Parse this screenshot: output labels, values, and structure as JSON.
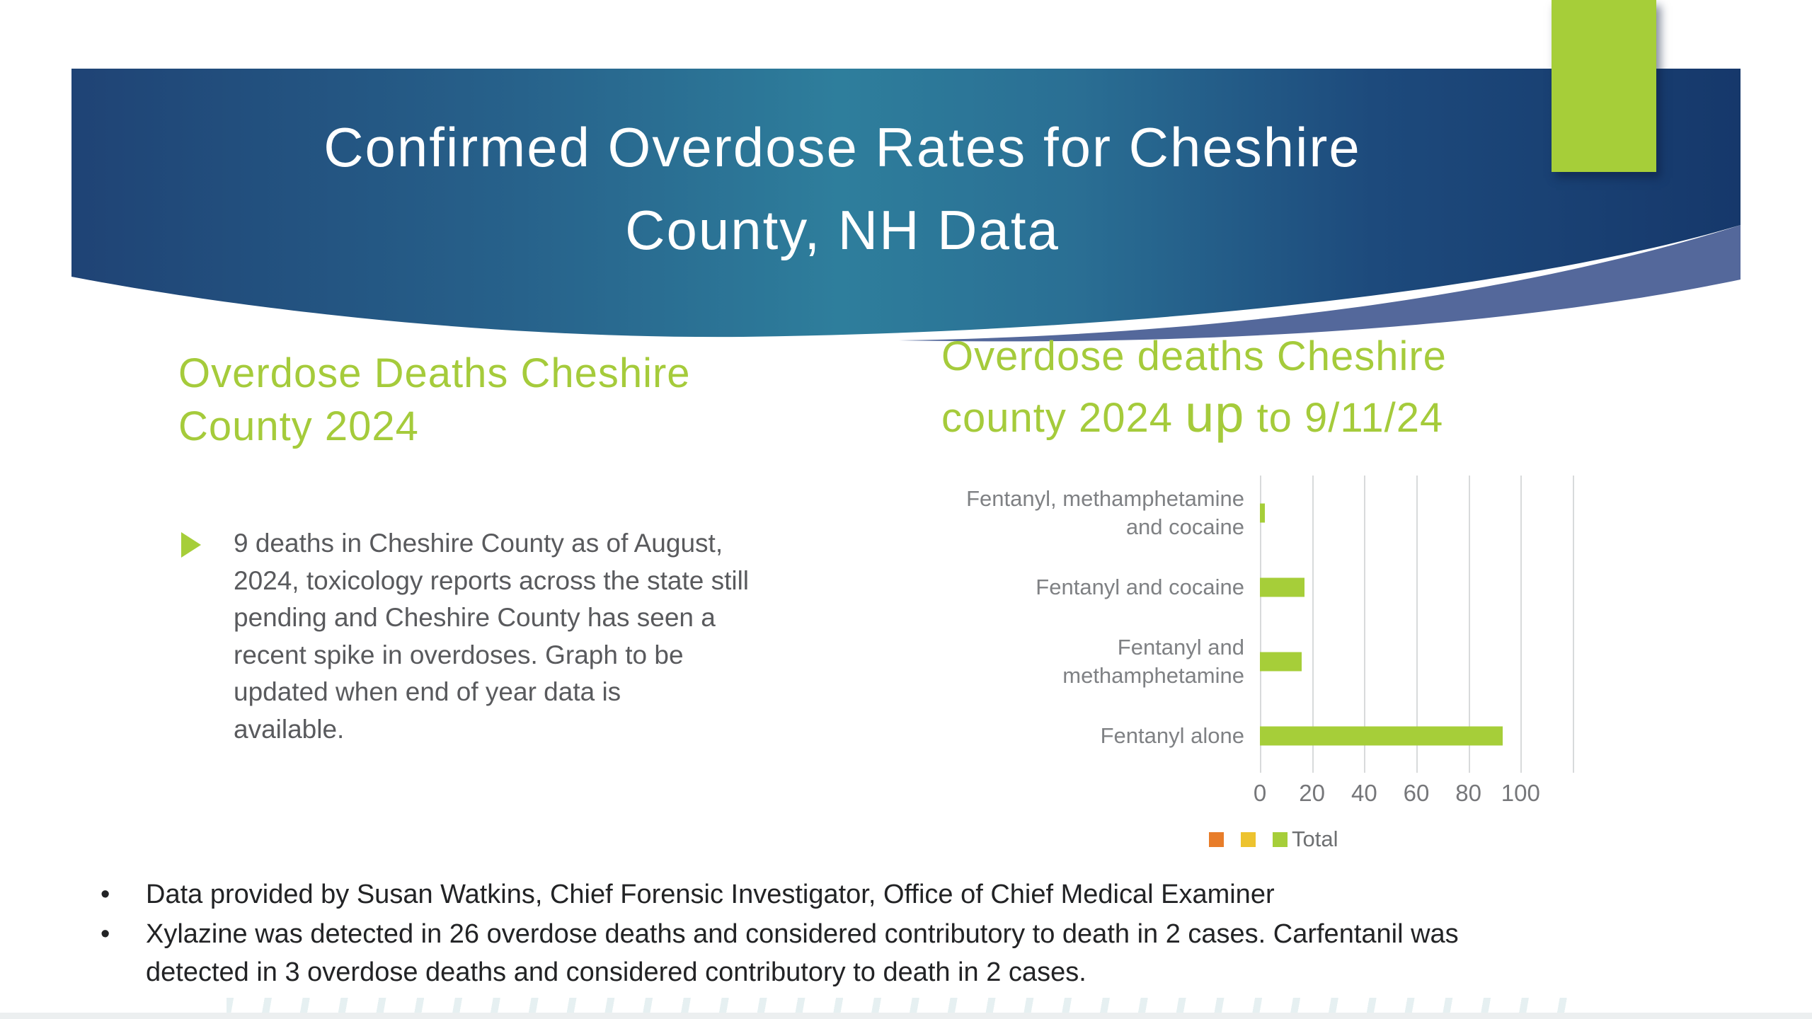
{
  "slide": {
    "title_lines": [
      "Confirmed Overdose Rates for Cheshire",
      "County, NH Data"
    ],
    "left_section": {
      "heading_lines": [
        "Overdose Deaths Cheshire",
        "County 2024"
      ],
      "bullet_lines": [
        "9 deaths in Cheshire County as of August,",
        "2024, toxicology reports across the state still",
        "pending and Cheshire County has seen a",
        "recent spike in overdoses. Graph to be",
        "updated when end of year data is",
        "available."
      ]
    },
    "right_section": {
      "heading_line1": "Overdose deaths Cheshire",
      "heading_line2_before_up": "county 2024 ",
      "heading_line2_up": "up",
      "heading_line2_after_up": " to 9/11/24"
    },
    "footer": {
      "bullet_glyph": "•",
      "items": [
        {
          "lines": [
            "Data provided by Susan Watkins, Chief Forensic Investigator, Office of Chief Medical Examiner"
          ]
        },
        {
          "lines": [
            "Xylazine was detected in 26 overdose deaths and considered contributory to death in 2 cases. Carfentanil was",
            "detected in 3 overdose deaths and considered contributory to death in 2 cases."
          ]
        }
      ]
    },
    "colors": {
      "accent_green": "#a6ce39",
      "header_navy": "#16386b",
      "header_teal": "#2e7e9c",
      "wave_highlight": "#54689b",
      "heading_green": "#a5cb3b",
      "body_text_gray": "#595a5d",
      "chart_label_gray": "#7f8184",
      "footer_text": "#222325"
    }
  },
  "chart_data": {
    "type": "bar",
    "orientation": "horizontal",
    "title": "Overdose deaths Cheshire county 2024 up to 9/11/24",
    "categories": [
      "Fentanyl, methamphetamine and cocaine",
      "Fentanyl and cocaine",
      "Fentanyl and methamphetamine",
      "Fentanyl alone"
    ],
    "category_lines": [
      [
        "Fentanyl, methamphetamine",
        "and cocaine"
      ],
      [
        "Fentanyl and cocaine"
      ],
      [
        "Fentanyl and",
        "methamphetamine"
      ],
      [
        "Fentanyl alone"
      ]
    ],
    "values": [
      2,
      17,
      16,
      93
    ],
    "series_name": "Total",
    "xlim": [
      0,
      120
    ],
    "xticks": [
      0,
      20,
      40,
      60,
      80,
      100
    ],
    "gridline_values": [
      0,
      20,
      40,
      60,
      80,
      100,
      120
    ],
    "grid": true,
    "bar_color": "#a6ce39",
    "legend_position": "bottom",
    "legend": [
      {
        "label": "",
        "color": "#e87d2a"
      },
      {
        "label": "",
        "color": "#edc32f"
      },
      {
        "label": "Total",
        "color": "#a6ce39"
      }
    ]
  }
}
